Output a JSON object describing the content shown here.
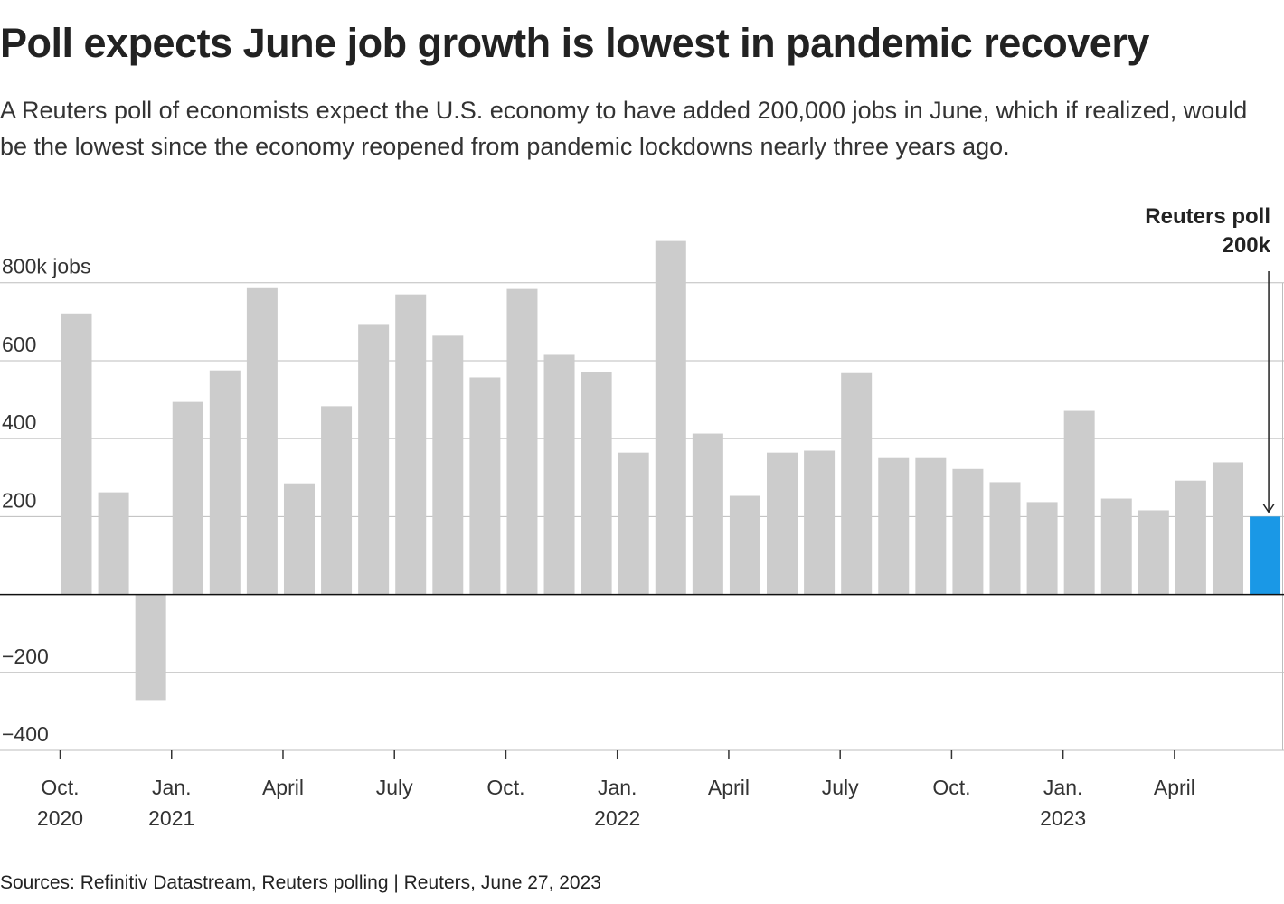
{
  "chart_data": {
    "type": "bar",
    "title": "Poll expects June job growth is lowest in pandemic recovery",
    "subtitle": "A Reuters poll of economists expect the U.S. economy to have added 200,000 jobs in June, which if realized, would be the lowest since the economy reopened from pandemic lockdowns nearly three years ago.",
    "source": "Sources: Refinitiv Datastream, Reuters polling | Reuters, June 27, 2023",
    "annotation": [
      "Reuters poll",
      "200k"
    ],
    "categories": [
      "Oct. 2020",
      null,
      null,
      "Jan. 2021",
      null,
      null,
      "April",
      null,
      null,
      "July",
      null,
      null,
      "Oct.",
      null,
      null,
      "Jan. 2022",
      null,
      null,
      "April",
      null,
      null,
      "July",
      null,
      null,
      "Oct.",
      null,
      null,
      "Jan. 2023",
      null,
      null,
      "April",
      null,
      null
    ],
    "values": [
      721,
      262,
      -271,
      494,
      575,
      786,
      285,
      483,
      694,
      770,
      664,
      557,
      784,
      615,
      571,
      364,
      907,
      413,
      253,
      364,
      369,
      568,
      350,
      350,
      322,
      288,
      237,
      471,
      246,
      216,
      292,
      339,
      200
    ],
    "colors": [
      "#cccccc",
      "#cccccc",
      "#cccccc",
      "#cccccc",
      "#cccccc",
      "#cccccc",
      "#cccccc",
      "#cccccc",
      "#cccccc",
      "#cccccc",
      "#cccccc",
      "#cccccc",
      "#cccccc",
      "#cccccc",
      "#cccccc",
      "#cccccc",
      "#cccccc",
      "#cccccc",
      "#cccccc",
      "#cccccc",
      "#cccccc",
      "#cccccc",
      "#cccccc",
      "#cccccc",
      "#cccccc",
      "#cccccc",
      "#cccccc",
      "#cccccc",
      "#cccccc",
      "#cccccc",
      "#cccccc",
      "#cccccc",
      "#1a98e6"
    ],
    "ylim": [
      -400,
      920
    ],
    "yticks": [
      {
        "value": -400,
        "label": "−400"
      },
      {
        "value": -200,
        "label": "−200"
      },
      200,
      400,
      600,
      {
        "value": 800,
        "label": "800k jobs"
      }
    ],
    "grid": true
  }
}
